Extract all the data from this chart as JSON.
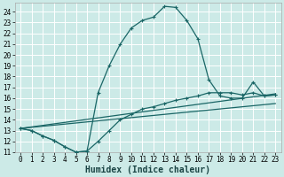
{
  "title": "",
  "xlabel": "Humidex (Indice chaleur)",
  "bg_color": "#cceae7",
  "grid_color": "#ffffff",
  "line_color": "#1a6666",
  "xlim": [
    -0.5,
    23.5
  ],
  "ylim": [
    11,
    24.8
  ],
  "xticks": [
    0,
    1,
    2,
    3,
    4,
    5,
    6,
    7,
    8,
    9,
    10,
    11,
    12,
    13,
    14,
    15,
    16,
    17,
    18,
    19,
    20,
    21,
    22,
    23
  ],
  "yticks": [
    11,
    12,
    13,
    14,
    15,
    16,
    17,
    18,
    19,
    20,
    21,
    22,
    23,
    24
  ],
  "line1_x": [
    0,
    1,
    2,
    3,
    4,
    5,
    6,
    7,
    8,
    9,
    10,
    11,
    12,
    13,
    14,
    15,
    16,
    17,
    18,
    19,
    20,
    21,
    22,
    23
  ],
  "line1_y": [
    13.2,
    13.0,
    12.5,
    12.1,
    11.5,
    11.0,
    11.1,
    16.5,
    19.0,
    21.0,
    22.5,
    23.2,
    23.5,
    24.5,
    24.4,
    23.2,
    21.5,
    17.7,
    16.2,
    16.0,
    16.0,
    17.5,
    16.2,
    16.3
  ],
  "line2_x": [
    0,
    1,
    2,
    3,
    4,
    5,
    6,
    7,
    8,
    9,
    10,
    11,
    12,
    13,
    14,
    15,
    16,
    17,
    18,
    19,
    20,
    21,
    22,
    23
  ],
  "line2_y": [
    13.2,
    13.0,
    12.5,
    12.1,
    11.5,
    11.0,
    11.1,
    12.0,
    13.0,
    14.0,
    14.5,
    15.0,
    15.2,
    15.5,
    15.8,
    16.0,
    16.2,
    16.5,
    16.5,
    16.5,
    16.3,
    16.5,
    16.2,
    16.3
  ],
  "line3_x": [
    0,
    23
  ],
  "line3_y": [
    13.2,
    16.4
  ],
  "line4_x": [
    0,
    23
  ],
  "line4_y": [
    13.2,
    15.5
  ],
  "tick_fontsize": 5.5,
  "xlabel_fontsize": 7
}
